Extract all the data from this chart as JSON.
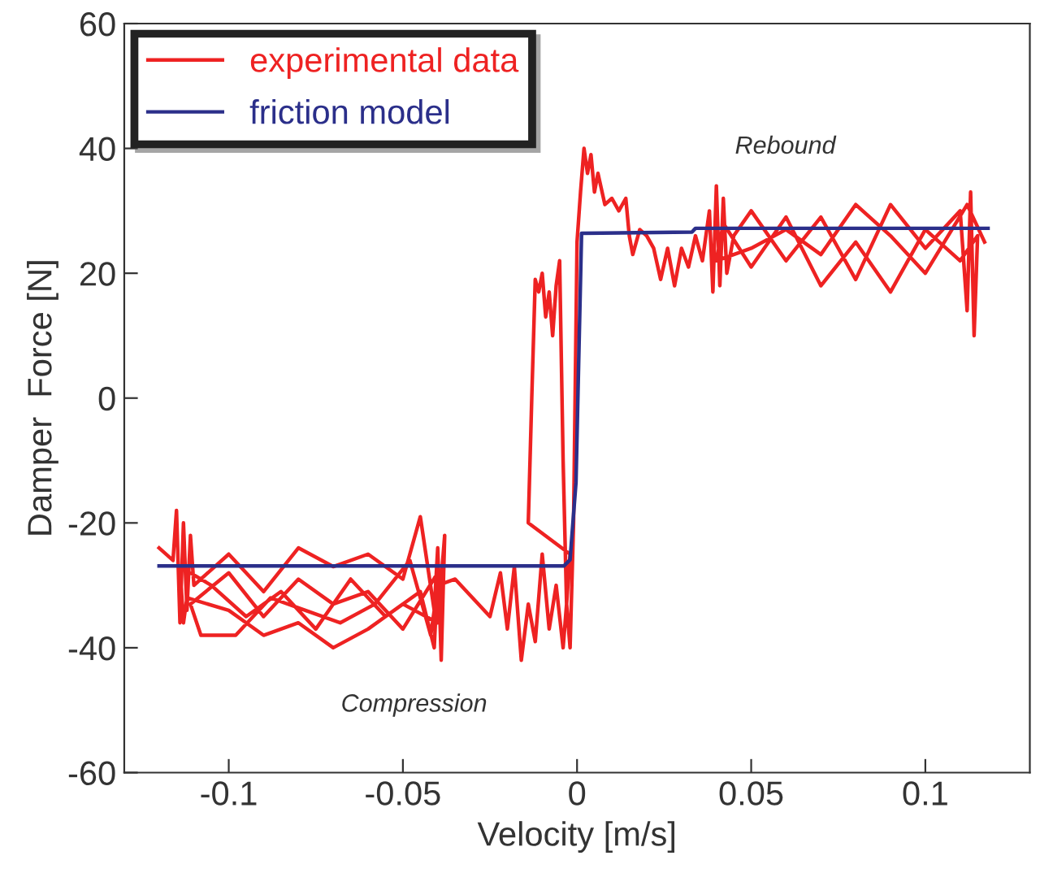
{
  "chart_data": {
    "type": "line",
    "xlabel": "Velocity [m/s]",
    "ylabel": "Damper  Force [N]",
    "xlim": [
      -0.13,
      0.13
    ],
    "xticks": [
      -0.1,
      -0.05,
      0,
      0.05,
      0.1
    ],
    "ylim": [
      -60,
      60
    ],
    "yticks": [
      -60,
      -40,
      -20,
      0,
      20,
      40,
      60
    ],
    "grid": false,
    "legend": "top left",
    "marker": "none",
    "line_style": "solid",
    "annotations": [
      "Rebound",
      "Compression"
    ],
    "series": [
      {
        "name": "experimental data",
        "color": "#ee2222",
        "x": [
          -0.12,
          -0.116,
          -0.115,
          -0.114,
          -0.113,
          -0.112,
          -0.111,
          -0.11,
          -0.1,
          -0.09,
          -0.08,
          -0.07,
          -0.06,
          -0.05,
          -0.045,
          -0.041,
          -0.04,
          -0.039,
          -0.038,
          -0.04,
          -0.05,
          -0.06,
          -0.07,
          -0.08,
          -0.09,
          -0.1,
          -0.112,
          -0.113,
          -0.114,
          -0.105,
          -0.095,
          -0.085,
          -0.075,
          -0.065,
          -0.055,
          -0.045,
          -0.041,
          -0.04,
          -0.05,
          -0.06,
          -0.07,
          -0.08,
          -0.09,
          -0.1,
          -0.111,
          -0.108,
          -0.098,
          -0.088,
          -0.078,
          -0.068,
          -0.058,
          -0.048,
          -0.042,
          -0.04,
          -0.035,
          -0.03,
          -0.025,
          -0.022,
          -0.02,
          -0.018,
          -0.016,
          -0.014,
          -0.012,
          -0.01,
          -0.008,
          -0.006,
          -0.004,
          -0.003,
          -0.002,
          -0.014,
          -0.013,
          -0.012,
          -0.011,
          -0.01,
          -0.009,
          -0.008,
          -0.007,
          -0.006,
          -0.005,
          -0.004,
          -0.003,
          -0.002,
          -0.001,
          0.0,
          0.001,
          0.002,
          0.003,
          0.004,
          0.005,
          0.006,
          0.008,
          0.01,
          0.012,
          0.014,
          0.015,
          0.016,
          0.018,
          0.02,
          0.022,
          0.024,
          0.026,
          0.028,
          0.03,
          0.032,
          0.034,
          0.036,
          0.038,
          0.039,
          0.04,
          0.041,
          0.042,
          0.043,
          0.045,
          0.05,
          0.06,
          0.07,
          0.08,
          0.09,
          0.1,
          0.11,
          0.112,
          0.113,
          0.114,
          0.115,
          0.11,
          0.1,
          0.09,
          0.08,
          0.07,
          0.06,
          0.05,
          0.042,
          0.04,
          0.05,
          0.06,
          0.07,
          0.08,
          0.09,
          0.1,
          0.112,
          0.117
        ],
        "values": [
          -24,
          -26,
          -18,
          -36,
          -20,
          -34,
          -22,
          -30,
          -25,
          -31,
          -24,
          -27,
          -25,
          -29,
          -19,
          -34,
          -24,
          -42,
          -22,
          -36,
          -33,
          -37,
          -40,
          -36,
          -38,
          -34,
          -32,
          -36,
          -27,
          -30,
          -35,
          -31,
          -37,
          -29,
          -35,
          -31,
          -40,
          -28,
          -37,
          -31,
          -33,
          -29,
          -35,
          -28,
          -33,
          -38,
          -38,
          -32,
          -34,
          -36,
          -33,
          -26,
          -38,
          -30,
          -29,
          -32,
          -35,
          -28,
          -37,
          -27,
          -42,
          -33,
          -39,
          -25,
          -37,
          -30,
          -40,
          -33,
          -25,
          -20,
          0,
          19,
          17,
          20,
          13,
          17,
          10,
          18,
          22,
          -10,
          -33,
          -40,
          -20,
          25,
          33,
          40,
          36,
          39,
          33,
          36,
          31,
          32,
          30,
          32,
          26,
          23,
          27,
          26,
          24,
          19,
          24,
          18,
          24,
          21,
          26,
          22,
          30,
          17,
          34,
          18,
          32,
          20,
          26,
          30,
          22,
          29,
          19,
          31,
          24,
          30,
          14,
          33,
          10,
          26,
          22,
          27,
          17,
          25,
          18,
          29,
          21,
          28,
          22,
          24,
          27,
          23,
          31,
          26,
          20,
          31,
          25
        ]
      },
      {
        "name": "friction model",
        "color": "#2b2f8a",
        "x": [
          -0.12,
          -0.0038,
          -0.002,
          -0.0003,
          0.0013,
          0.033,
          0.034,
          0.118
        ],
        "values": [
          -26.9,
          -26.9,
          -25.9,
          -13.5,
          26.4,
          26.6,
          27.2,
          27.2
        ]
      }
    ]
  }
}
